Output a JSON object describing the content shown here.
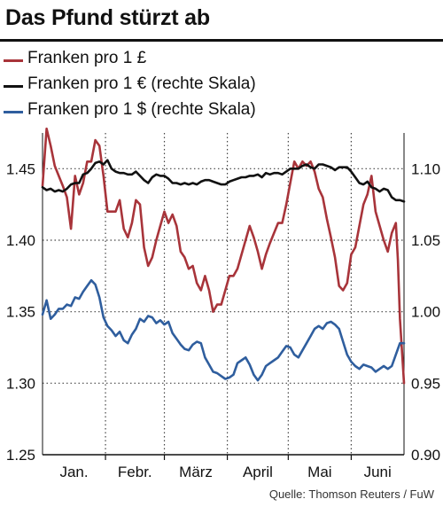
{
  "title": "Das Pfund stürzt ab",
  "source": "Quelle: Thomson Reuters / FuW",
  "colors": {
    "gbp": "#a8343a",
    "eur": "#111111",
    "usd": "#2f5e9e",
    "grid": "#444444"
  },
  "chart_data": {
    "type": "line",
    "title": "Das Pfund stürzt ab",
    "months": [
      "Jan.",
      "Febr.",
      "März",
      "April",
      "Mai",
      "Juni"
    ],
    "left_axis": {
      "ylim": [
        1.25,
        1.475
      ],
      "ticks": [
        1.25,
        1.3,
        1.35,
        1.4,
        1.45
      ],
      "tick_labels": [
        "1.25",
        "1.30",
        "1.35",
        "1.40",
        "1.45"
      ]
    },
    "right_axis": {
      "ylim": [
        0.9,
        1.125
      ],
      "ticks": [
        0.9,
        0.95,
        1.0,
        1.05,
        1.1
      ],
      "tick_labels": [
        "0.90",
        "0.95",
        "1.00",
        "1.05",
        "1.10"
      ]
    },
    "grid": "dotted",
    "x_domain": [
      "2016-01-01",
      "2016-06-27"
    ],
    "series": [
      {
        "name": "Franken pro 1 £",
        "axis": "left",
        "color": "#a8343a",
        "dates": [
          "2016-01-01",
          "2016-01-03",
          "2016-01-05",
          "2016-01-07",
          "2016-01-09",
          "2016-01-11",
          "2016-01-13",
          "2016-01-15",
          "2016-01-17",
          "2016-01-19",
          "2016-01-21",
          "2016-01-23",
          "2016-01-25",
          "2016-01-27",
          "2016-01-29",
          "2016-01-31",
          "2016-02-02",
          "2016-02-04",
          "2016-02-06",
          "2016-02-08",
          "2016-02-10",
          "2016-02-12",
          "2016-02-14",
          "2016-02-16",
          "2016-02-18",
          "2016-02-20",
          "2016-02-22",
          "2016-02-24",
          "2016-02-26",
          "2016-02-28",
          "2016-03-01",
          "2016-03-03",
          "2016-03-05",
          "2016-03-07",
          "2016-03-09",
          "2016-03-11",
          "2016-03-13",
          "2016-03-15",
          "2016-03-17",
          "2016-03-19",
          "2016-03-21",
          "2016-03-23",
          "2016-03-25",
          "2016-03-27",
          "2016-03-29",
          "2016-03-31",
          "2016-04-02",
          "2016-04-04",
          "2016-04-06",
          "2016-04-08",
          "2016-04-10",
          "2016-04-12",
          "2016-04-14",
          "2016-04-16",
          "2016-04-18",
          "2016-04-20",
          "2016-04-22",
          "2016-04-24",
          "2016-04-26",
          "2016-04-28",
          "2016-04-30",
          "2016-05-02",
          "2016-05-04",
          "2016-05-06",
          "2016-05-08",
          "2016-05-10",
          "2016-05-12",
          "2016-05-14",
          "2016-05-16",
          "2016-05-18",
          "2016-05-20",
          "2016-05-22",
          "2016-05-24",
          "2016-05-26",
          "2016-05-28",
          "2016-05-30",
          "2016-06-01",
          "2016-06-03",
          "2016-06-05",
          "2016-06-07",
          "2016-06-09",
          "2016-06-11",
          "2016-06-13",
          "2016-06-15",
          "2016-06-17",
          "2016-06-19",
          "2016-06-21",
          "2016-06-23",
          "2016-06-24",
          "2016-06-25",
          "2016-06-27"
        ],
        "values": [
          1.438,
          1.478,
          1.466,
          1.452,
          1.445,
          1.438,
          1.43,
          1.408,
          1.445,
          1.432,
          1.44,
          1.455,
          1.455,
          1.47,
          1.466,
          1.445,
          1.42,
          1.42,
          1.42,
          1.428,
          1.408,
          1.402,
          1.412,
          1.428,
          1.425,
          1.395,
          1.382,
          1.388,
          1.4,
          1.41,
          1.42,
          1.412,
          1.418,
          1.41,
          1.392,
          1.388,
          1.38,
          1.382,
          1.37,
          1.365,
          1.375,
          1.365,
          1.35,
          1.355,
          1.355,
          1.365,
          1.375,
          1.375,
          1.38,
          1.39,
          1.4,
          1.41,
          1.402,
          1.392,
          1.38,
          1.39,
          1.398,
          1.405,
          1.412,
          1.412,
          1.425,
          1.44,
          1.455,
          1.45,
          1.455,
          1.452,
          1.455,
          1.448,
          1.436,
          1.43,
          1.415,
          1.402,
          1.388,
          1.368,
          1.365,
          1.37,
          1.39,
          1.395,
          1.41,
          1.425,
          1.432,
          1.445,
          1.42,
          1.41,
          1.4,
          1.392,
          1.405,
          1.412,
          1.386,
          1.345,
          1.3
        ]
      },
      {
        "name": "Franken pro 1 € (rechte Skala)",
        "axis": "right",
        "color": "#111111",
        "dates": [
          "2016-01-01",
          "2016-01-03",
          "2016-01-05",
          "2016-01-07",
          "2016-01-09",
          "2016-01-11",
          "2016-01-13",
          "2016-01-15",
          "2016-01-17",
          "2016-01-19",
          "2016-01-21",
          "2016-01-23",
          "2016-01-25",
          "2016-01-27",
          "2016-01-29",
          "2016-01-31",
          "2016-02-02",
          "2016-02-04",
          "2016-02-06",
          "2016-02-08",
          "2016-02-10",
          "2016-02-12",
          "2016-02-14",
          "2016-02-16",
          "2016-02-18",
          "2016-02-20",
          "2016-02-22",
          "2016-02-24",
          "2016-02-26",
          "2016-02-28",
          "2016-03-01",
          "2016-03-03",
          "2016-03-05",
          "2016-03-07",
          "2016-03-09",
          "2016-03-11",
          "2016-03-13",
          "2016-03-15",
          "2016-03-17",
          "2016-03-19",
          "2016-03-21",
          "2016-03-23",
          "2016-03-25",
          "2016-03-27",
          "2016-03-29",
          "2016-03-31",
          "2016-04-02",
          "2016-04-04",
          "2016-04-06",
          "2016-04-08",
          "2016-04-10",
          "2016-04-12",
          "2016-04-14",
          "2016-04-16",
          "2016-04-18",
          "2016-04-20",
          "2016-04-22",
          "2016-04-24",
          "2016-04-26",
          "2016-04-28",
          "2016-04-30",
          "2016-05-02",
          "2016-05-04",
          "2016-05-06",
          "2016-05-08",
          "2016-05-10",
          "2016-05-12",
          "2016-05-14",
          "2016-05-16",
          "2016-05-18",
          "2016-05-20",
          "2016-05-22",
          "2016-05-24",
          "2016-05-26",
          "2016-05-28",
          "2016-05-30",
          "2016-06-01",
          "2016-06-03",
          "2016-06-05",
          "2016-06-07",
          "2016-06-09",
          "2016-06-11",
          "2016-06-13",
          "2016-06-15",
          "2016-06-17",
          "2016-06-19",
          "2016-06-21",
          "2016-06-23",
          "2016-06-25",
          "2016-06-27"
        ],
        "values": [
          1.087,
          1.085,
          1.086,
          1.084,
          1.085,
          1.084,
          1.086,
          1.089,
          1.09,
          1.09,
          1.096,
          1.097,
          1.1,
          1.104,
          1.105,
          1.103,
          1.106,
          1.1,
          1.098,
          1.097,
          1.097,
          1.096,
          1.096,
          1.098,
          1.095,
          1.092,
          1.09,
          1.094,
          1.096,
          1.095,
          1.095,
          1.093,
          1.09,
          1.09,
          1.089,
          1.09,
          1.089,
          1.09,
          1.089,
          1.091,
          1.092,
          1.092,
          1.091,
          1.09,
          1.089,
          1.089,
          1.091,
          1.092,
          1.093,
          1.094,
          1.094,
          1.095,
          1.095,
          1.096,
          1.094,
          1.097,
          1.096,
          1.097,
          1.097,
          1.096,
          1.098,
          1.1,
          1.1,
          1.1,
          1.102,
          1.103,
          1.101,
          1.1,
          1.103,
          1.103,
          1.102,
          1.101,
          1.099,
          1.101,
          1.101,
          1.101,
          1.098,
          1.094,
          1.09,
          1.089,
          1.091,
          1.087,
          1.086,
          1.084,
          1.086,
          1.085,
          1.08,
          1.078,
          1.078,
          1.077
        ]
      },
      {
        "name": "Franken pro 1 $ (rechte Skala)",
        "axis": "right",
        "color": "#2f5e9e",
        "dates": [
          "2016-01-01",
          "2016-01-03",
          "2016-01-05",
          "2016-01-07",
          "2016-01-09",
          "2016-01-11",
          "2016-01-13",
          "2016-01-15",
          "2016-01-17",
          "2016-01-19",
          "2016-01-21",
          "2016-01-23",
          "2016-01-25",
          "2016-01-27",
          "2016-01-29",
          "2016-01-31",
          "2016-02-02",
          "2016-02-04",
          "2016-02-06",
          "2016-02-08",
          "2016-02-10",
          "2016-02-12",
          "2016-02-14",
          "2016-02-16",
          "2016-02-18",
          "2016-02-20",
          "2016-02-22",
          "2016-02-24",
          "2016-02-26",
          "2016-02-28",
          "2016-03-01",
          "2016-03-03",
          "2016-03-05",
          "2016-03-07",
          "2016-03-09",
          "2016-03-11",
          "2016-03-13",
          "2016-03-15",
          "2016-03-17",
          "2016-03-19",
          "2016-03-21",
          "2016-03-23",
          "2016-03-25",
          "2016-03-27",
          "2016-03-29",
          "2016-03-31",
          "2016-04-02",
          "2016-04-04",
          "2016-04-06",
          "2016-04-08",
          "2016-04-10",
          "2016-04-12",
          "2016-04-14",
          "2016-04-16",
          "2016-04-18",
          "2016-04-20",
          "2016-04-22",
          "2016-04-24",
          "2016-04-26",
          "2016-04-28",
          "2016-04-30",
          "2016-05-02",
          "2016-05-04",
          "2016-05-06",
          "2016-05-08",
          "2016-05-10",
          "2016-05-12",
          "2016-05-14",
          "2016-05-16",
          "2016-05-18",
          "2016-05-20",
          "2016-05-22",
          "2016-05-24",
          "2016-05-26",
          "2016-05-28",
          "2016-05-30",
          "2016-06-01",
          "2016-06-03",
          "2016-06-05",
          "2016-06-07",
          "2016-06-09",
          "2016-06-11",
          "2016-06-13",
          "2016-06-15",
          "2016-06-17",
          "2016-06-19",
          "2016-06-21",
          "2016-06-23",
          "2016-06-25",
          "2016-06-27"
        ],
        "values": [
          0.998,
          1.008,
          0.995,
          0.998,
          1.002,
          1.002,
          1.005,
          1.004,
          1.01,
          1.009,
          1.014,
          1.018,
          1.022,
          1.019,
          1.01,
          0.996,
          0.99,
          0.987,
          0.983,
          0.986,
          0.98,
          0.978,
          0.984,
          0.988,
          0.995,
          0.993,
          0.997,
          0.996,
          0.992,
          0.994,
          0.991,
          0.993,
          0.985,
          0.981,
          0.977,
          0.974,
          0.973,
          0.977,
          0.979,
          0.978,
          0.968,
          0.963,
          0.958,
          0.957,
          0.955,
          0.953,
          0.954,
          0.956,
          0.964,
          0.966,
          0.968,
          0.963,
          0.956,
          0.952,
          0.956,
          0.962,
          0.964,
          0.966,
          0.968,
          0.972,
          0.976,
          0.975,
          0.97,
          0.968,
          0.973,
          0.978,
          0.983,
          0.988,
          0.99,
          0.988,
          0.992,
          0.993,
          0.991,
          0.988,
          0.979,
          0.97,
          0.965,
          0.962,
          0.96,
          0.963,
          0.962,
          0.961,
          0.958,
          0.96,
          0.962,
          0.96,
          0.962,
          0.97,
          0.978,
          0.978
        ]
      }
    ]
  }
}
